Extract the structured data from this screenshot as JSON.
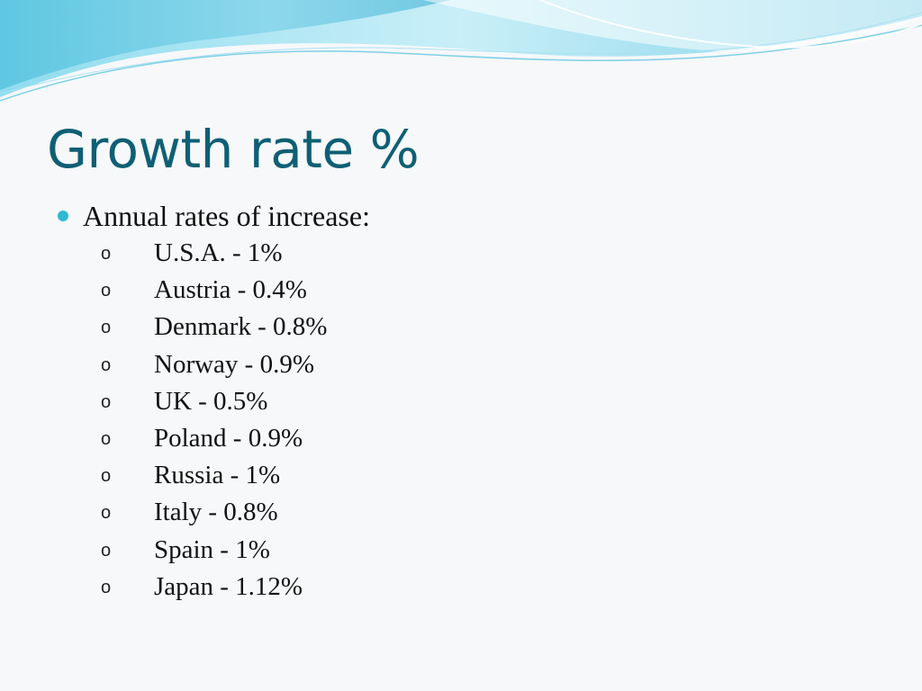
{
  "slide": {
    "title": "Growth rate %",
    "intro": "Annual rates of increase:",
    "items": [
      "U.S.A. - 1%",
      "Austria - 0.4%",
      "Denmark - 0.8%",
      "Norway - 0.9%",
      "UK - 0.5%",
      "Poland - 0.9%",
      "Russia - 1%",
      "Italy - 0.8%",
      "Spain - 1%",
      "Japan - 1.12%"
    ],
    "sub_bullet_glyph": "o",
    "colors": {
      "title": "#0f5f74",
      "accent_bullet": "#2fb9d4",
      "wave_light": "#bfe9f4",
      "wave_mid": "#7fd4ea",
      "wave_dark": "#38b3d3"
    }
  }
}
